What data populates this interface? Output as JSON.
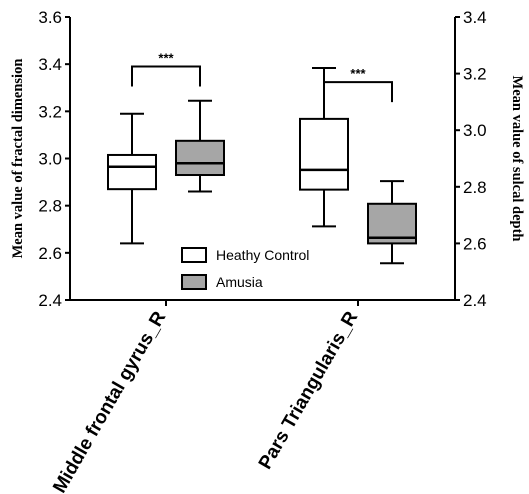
{
  "chart_data": {
    "type": "box",
    "categories": [
      "Middle frontal gyrus_R",
      "Pars Triangularis_R"
    ],
    "left_axis": {
      "label": "Mean value of fractal dimension",
      "ylim": [
        2.4,
        3.6
      ],
      "ticks": [
        "2.4",
        "2.6",
        "2.8",
        "3.0",
        "3.2",
        "3.4",
        "3.6"
      ]
    },
    "right_axis": {
      "label": "Mean value of sulcal depth",
      "ylim": [
        2.4,
        3.4
      ],
      "ticks": [
        "2.4",
        "2.6",
        "2.8",
        "3.0",
        "3.2",
        "3.4"
      ]
    },
    "series": [
      {
        "name": "Heathy Control",
        "color": "#ffffff",
        "boxes": [
          {
            "category": "Middle frontal gyrus_R",
            "axis": "left",
            "min": 2.64,
            "q1": 2.87,
            "median": 2.965,
            "q3": 3.015,
            "max": 3.19
          },
          {
            "category": "Pars Triangularis_R",
            "axis": "right",
            "min": 2.66,
            "q1": 2.79,
            "median": 2.86,
            "q3": 3.04,
            "max": 3.22
          }
        ]
      },
      {
        "name": "Amusia",
        "color": "#a6a6a6",
        "boxes": [
          {
            "category": "Middle frontal gyrus_R",
            "axis": "left",
            "min": 2.86,
            "q1": 2.93,
            "median": 2.98,
            "q3": 3.075,
            "max": 3.245
          },
          {
            "category": "Pars Triangularis_R",
            "axis": "right",
            "min": 2.53,
            "q1": 2.6,
            "median": 2.62,
            "q3": 2.74,
            "max": 2.82
          }
        ]
      }
    ],
    "annotations": [
      {
        "text": "***",
        "category": "Middle frontal gyrus_R",
        "axis": "left",
        "y": 3.39
      },
      {
        "text": "***",
        "category": "Pars Triangularis_R",
        "axis": "right",
        "y": 3.17
      }
    ],
    "legend": {
      "placement": "bottom-center"
    },
    "grid": false
  }
}
